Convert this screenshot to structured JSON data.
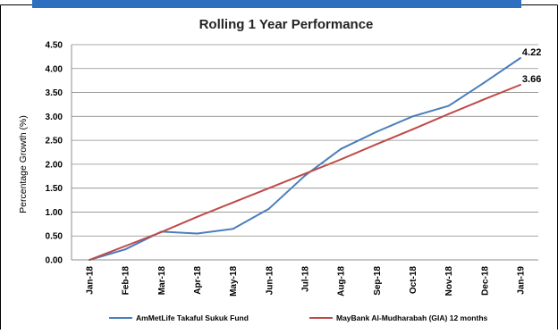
{
  "chart_data": {
    "type": "line",
    "title": "Rolling 1 Year Performance",
    "xlabel": "",
    "ylabel": "Percentage Growth (%)",
    "ylim": [
      0,
      4.5
    ],
    "ytick_step": 0.5,
    "yticks": [
      "0.00",
      "0.50",
      "1.00",
      "1.50",
      "2.00",
      "2.50",
      "3.00",
      "3.50",
      "4.00",
      "4.50"
    ],
    "grid": true,
    "legend_position": "bottom",
    "categories": [
      "Jan-18",
      "Feb-18",
      "Mar-18",
      "Apr-18",
      "May-18",
      "Jun-18",
      "Jul-18",
      "Aug-18",
      "Sep-18",
      "Oct-18",
      "Nov-18",
      "Dec-18",
      "Jan-19"
    ],
    "series": [
      {
        "name": "AmMetLife Takaful  Sukuk Fund",
        "color": "#4a7ebb",
        "values": [
          0.0,
          0.22,
          0.59,
          0.55,
          0.65,
          1.07,
          1.76,
          2.32,
          2.68,
          3.0,
          3.22,
          3.71,
          4.22
        ],
        "end_label": "4.22"
      },
      {
        "name": "MayBank Al-Mudharabah (GIA) 12 months",
        "color": "#be4b48",
        "values": [
          0.0,
          0.29,
          0.58,
          0.9,
          1.2,
          1.5,
          1.8,
          2.1,
          2.42,
          2.73,
          3.05,
          3.36,
          3.66
        ],
        "end_label": "3.66"
      }
    ]
  },
  "colors": {
    "header_band": "#2f6fc0",
    "frame": "#000000",
    "gridline": "#8c8c8c"
  }
}
